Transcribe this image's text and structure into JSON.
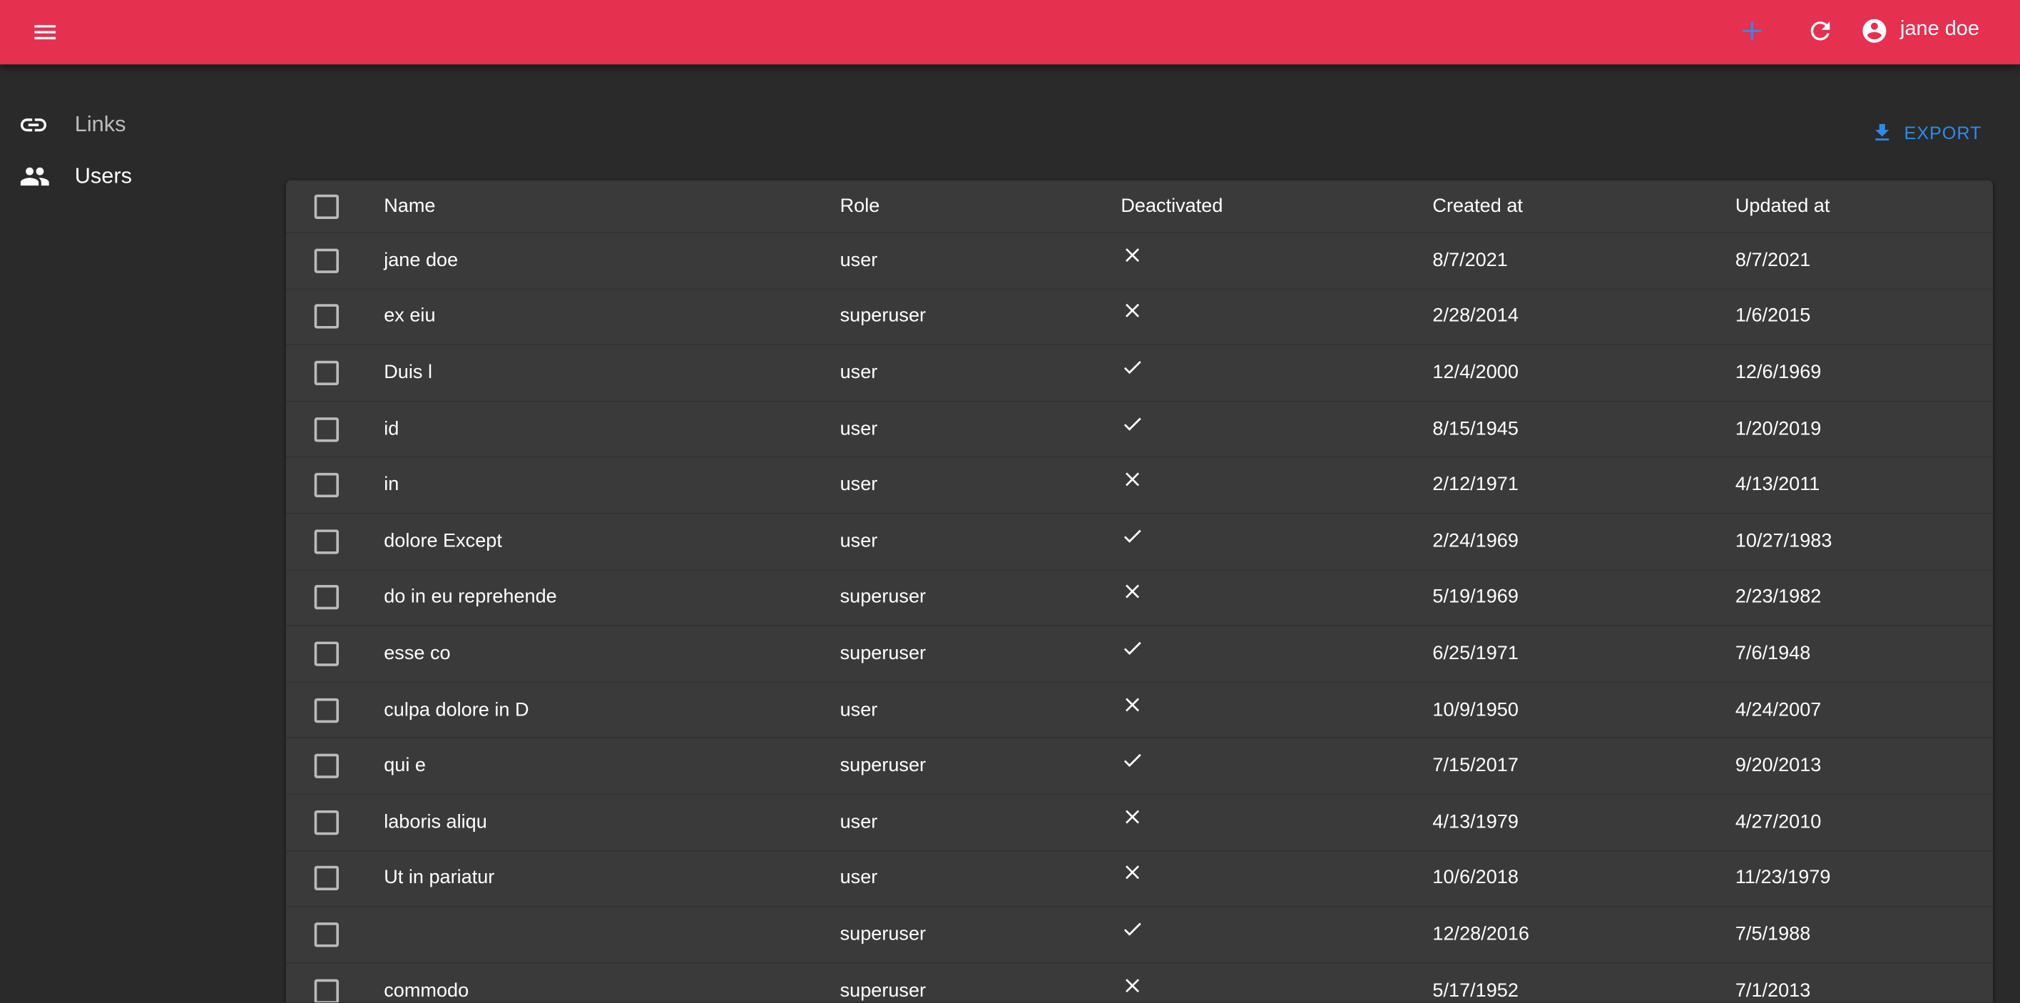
{
  "appbar": {
    "user_name": "jane doe",
    "icons": [
      "menu-icon",
      "plus-icon",
      "refresh-icon",
      "account-circle-icon"
    ],
    "color": "#e5304f",
    "plus_color": "#2f8ae8"
  },
  "sidebar": {
    "items": [
      {
        "label": "Links",
        "icon": "link-icon"
      },
      {
        "label": "Users",
        "icon": "people-icon"
      }
    ]
  },
  "toolbar": {
    "export_label": "EXPORT"
  },
  "table": {
    "columns": [
      "Name",
      "Role",
      "Deactivated",
      "Created at",
      "Updated at"
    ],
    "rows": [
      {
        "name": "jane doe",
        "role": "user",
        "deactivated": false,
        "created": "8/7/2021",
        "updated": "8/7/2021"
      },
      {
        "name": "ex eiu",
        "role": "superuser",
        "deactivated": false,
        "created": "2/28/2014",
        "updated": "1/6/2015"
      },
      {
        "name": "Duis l",
        "role": "user",
        "deactivated": true,
        "created": "12/4/2000",
        "updated": "12/6/1969"
      },
      {
        "name": "id",
        "role": "user",
        "deactivated": true,
        "created": "8/15/1945",
        "updated": "1/20/2019"
      },
      {
        "name": "in",
        "role": "user",
        "deactivated": false,
        "created": "2/12/1971",
        "updated": "4/13/2011"
      },
      {
        "name": "dolore Except",
        "role": "user",
        "deactivated": true,
        "created": "2/24/1969",
        "updated": "10/27/1983"
      },
      {
        "name": "do in eu reprehende",
        "role": "superuser",
        "deactivated": false,
        "created": "5/19/1969",
        "updated": "2/23/1982"
      },
      {
        "name": "esse co",
        "role": "superuser",
        "deactivated": true,
        "created": "6/25/1971",
        "updated": "7/6/1948"
      },
      {
        "name": "culpa dolore in D",
        "role": "user",
        "deactivated": false,
        "created": "10/9/1950",
        "updated": "4/24/2007"
      },
      {
        "name": "qui e",
        "role": "superuser",
        "deactivated": true,
        "created": "7/15/2017",
        "updated": "9/20/2013"
      },
      {
        "name": "laboris aliqu",
        "role": "user",
        "deactivated": false,
        "created": "4/13/1979",
        "updated": "4/27/2010"
      },
      {
        "name": "Ut in pariatur",
        "role": "user",
        "deactivated": false,
        "created": "10/6/2018",
        "updated": "11/23/1979"
      },
      {
        "name": "",
        "role": "superuser",
        "deactivated": true,
        "created": "12/28/2016",
        "updated": "7/5/1988"
      },
      {
        "name": "commodo",
        "role": "superuser",
        "deactivated": false,
        "created": "5/17/1952",
        "updated": "7/1/2013"
      }
    ]
  }
}
